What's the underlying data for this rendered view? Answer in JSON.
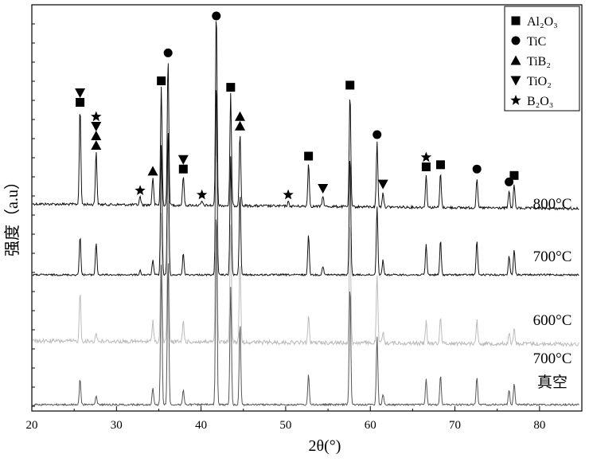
{
  "chart_data": {
    "type": "line",
    "xlabel": "2θ(°)",
    "ylabel": "强度（a.u）",
    "xlim": [
      20,
      85
    ],
    "x_ticks": [
      "20",
      "30",
      "40",
      "50",
      "60",
      "70",
      "80"
    ],
    "grid": false,
    "legend_position": "top-right",
    "legend": [
      {
        "marker": "square",
        "label": "Al₂O₃"
      },
      {
        "marker": "circle",
        "label": "TiC"
      },
      {
        "marker": "triangle-up",
        "label": "TiB₂"
      },
      {
        "marker": "triangle-down",
        "label": "TiO₂"
      },
      {
        "marker": "star",
        "label": "B₂O₃"
      }
    ],
    "series": [
      {
        "name": "800°C",
        "color": "#111111",
        "peaks": [
          {
            "x": 25.7,
            "h": 0.45
          },
          {
            "x": 27.6,
            "h": 0.25
          },
          {
            "x": 32.8,
            "h": 0.04
          },
          {
            "x": 34.3,
            "h": 0.13
          },
          {
            "x": 35.3,
            "h": 0.55
          },
          {
            "x": 36.1,
            "h": 0.68
          },
          {
            "x": 37.9,
            "h": 0.14
          },
          {
            "x": 40.1,
            "h": 0.02
          },
          {
            "x": 41.8,
            "h": 0.92
          },
          {
            "x": 43.5,
            "h": 0.52
          },
          {
            "x": 44.6,
            "h": 0.34
          },
          {
            "x": 50.3,
            "h": 0.02
          },
          {
            "x": 52.7,
            "h": 0.2
          },
          {
            "x": 54.4,
            "h": 0.05
          },
          {
            "x": 57.6,
            "h": 0.53
          },
          {
            "x": 60.8,
            "h": 0.3
          },
          {
            "x": 61.5,
            "h": 0.07
          },
          {
            "x": 66.6,
            "h": 0.15
          },
          {
            "x": 68.3,
            "h": 0.16
          },
          {
            "x": 72.6,
            "h": 0.14
          },
          {
            "x": 76.4,
            "h": 0.08
          },
          {
            "x": 77.0,
            "h": 0.11
          }
        ],
        "label": "800°C"
      },
      {
        "name": "700°C",
        "color": "#111111",
        "peaks": [
          {
            "x": 25.7,
            "h": 0.18
          },
          {
            "x": 27.6,
            "h": 0.15
          },
          {
            "x": 32.8,
            "h": 0.02
          },
          {
            "x": 34.3,
            "h": 0.07
          },
          {
            "x": 35.3,
            "h": 0.6
          },
          {
            "x": 36.1,
            "h": 0.68
          },
          {
            "x": 37.9,
            "h": 0.1
          },
          {
            "x": 41.8,
            "h": 0.92
          },
          {
            "x": 43.5,
            "h": 0.55
          },
          {
            "x": 44.6,
            "h": 0.38
          },
          {
            "x": 52.7,
            "h": 0.19
          },
          {
            "x": 54.4,
            "h": 0.04
          },
          {
            "x": 57.6,
            "h": 0.56
          },
          {
            "x": 60.8,
            "h": 0.32
          },
          {
            "x": 61.5,
            "h": 0.07
          },
          {
            "x": 66.6,
            "h": 0.14
          },
          {
            "x": 68.3,
            "h": 0.16
          },
          {
            "x": 72.6,
            "h": 0.16
          },
          {
            "x": 76.4,
            "h": 0.09
          },
          {
            "x": 77.0,
            "h": 0.12
          }
        ],
        "label": "700°C"
      },
      {
        "name": "600°C",
        "color": "#bbbbbb",
        "peaks": [
          {
            "x": 25.7,
            "h": 0.23
          },
          {
            "x": 27.6,
            "h": 0.04
          },
          {
            "x": 34.3,
            "h": 0.1
          },
          {
            "x": 35.3,
            "h": 0.6
          },
          {
            "x": 36.1,
            "h": 0.68
          },
          {
            "x": 37.9,
            "h": 0.1
          },
          {
            "x": 41.8,
            "h": 0.92
          },
          {
            "x": 43.5,
            "h": 0.55
          },
          {
            "x": 44.6,
            "h": 0.38
          },
          {
            "x": 52.7,
            "h": 0.12
          },
          {
            "x": 57.6,
            "h": 0.56
          },
          {
            "x": 60.8,
            "h": 0.32
          },
          {
            "x": 61.5,
            "h": 0.05
          },
          {
            "x": 66.6,
            "h": 0.1
          },
          {
            "x": 68.3,
            "h": 0.13
          },
          {
            "x": 72.6,
            "h": 0.11
          },
          {
            "x": 76.4,
            "h": 0.05
          },
          {
            "x": 77.0,
            "h": 0.07
          }
        ],
        "label": "600°C"
      },
      {
        "name": "700°C 真空",
        "color": "#555555",
        "peaks": [
          {
            "x": 25.7,
            "h": 0.12
          },
          {
            "x": 27.6,
            "h": 0.04
          },
          {
            "x": 34.3,
            "h": 0.08
          },
          {
            "x": 35.3,
            "h": 0.65
          },
          {
            "x": 36.1,
            "h": 0.68
          },
          {
            "x": 37.9,
            "h": 0.07
          },
          {
            "x": 41.8,
            "h": 0.92
          },
          {
            "x": 43.5,
            "h": 0.55
          },
          {
            "x": 44.6,
            "h": 0.38
          },
          {
            "x": 52.7,
            "h": 0.14
          },
          {
            "x": 57.6,
            "h": 0.56
          },
          {
            "x": 60.8,
            "h": 0.32
          },
          {
            "x": 61.5,
            "h": 0.05
          },
          {
            "x": 66.6,
            "h": 0.12
          },
          {
            "x": 68.3,
            "h": 0.14
          },
          {
            "x": 72.6,
            "h": 0.13
          },
          {
            "x": 76.4,
            "h": 0.07
          },
          {
            "x": 77.0,
            "h": 0.1
          }
        ],
        "label_lines": [
          "700°C",
          "真空"
        ]
      }
    ],
    "phase_markers": [
      {
        "x": 25.7,
        "markers": [
          "square",
          "triangle-down"
        ]
      },
      {
        "x": 27.6,
        "markers": [
          "triangle-up",
          "triangle-up",
          "triangle-down",
          "star"
        ]
      },
      {
        "x": 32.8,
        "markers": [
          "star"
        ]
      },
      {
        "x": 34.3,
        "markers": [
          "triangle-up"
        ]
      },
      {
        "x": 35.3,
        "markers": [
          "square"
        ]
      },
      {
        "x": 36.1,
        "markers": [
          "circle"
        ]
      },
      {
        "x": 37.9,
        "markers": [
          "square",
          "triangle-down"
        ]
      },
      {
        "x": 40.1,
        "markers": [
          "star"
        ]
      },
      {
        "x": 41.8,
        "markers": [
          "circle"
        ]
      },
      {
        "x": 43.5,
        "markers": [
          "square"
        ]
      },
      {
        "x": 44.6,
        "markers": [
          "triangle-up",
          "triangle-up"
        ]
      },
      {
        "x": 50.3,
        "markers": [
          "star"
        ]
      },
      {
        "x": 52.7,
        "markers": [
          "square"
        ]
      },
      {
        "x": 54.4,
        "markers": [
          "triangle-down"
        ]
      },
      {
        "x": 57.6,
        "markers": [
          "square"
        ]
      },
      {
        "x": 60.8,
        "markers": [
          "circle"
        ]
      },
      {
        "x": 61.5,
        "markers": [
          "triangle-down"
        ]
      },
      {
        "x": 66.6,
        "markers": [
          "square",
          "star"
        ]
      },
      {
        "x": 68.3,
        "markers": [
          "square"
        ]
      },
      {
        "x": 72.6,
        "markers": [
          "circle"
        ]
      },
      {
        "x": 76.4,
        "markers": [
          "circle"
        ]
      },
      {
        "x": 77.0,
        "markers": [
          "square"
        ]
      }
    ]
  }
}
